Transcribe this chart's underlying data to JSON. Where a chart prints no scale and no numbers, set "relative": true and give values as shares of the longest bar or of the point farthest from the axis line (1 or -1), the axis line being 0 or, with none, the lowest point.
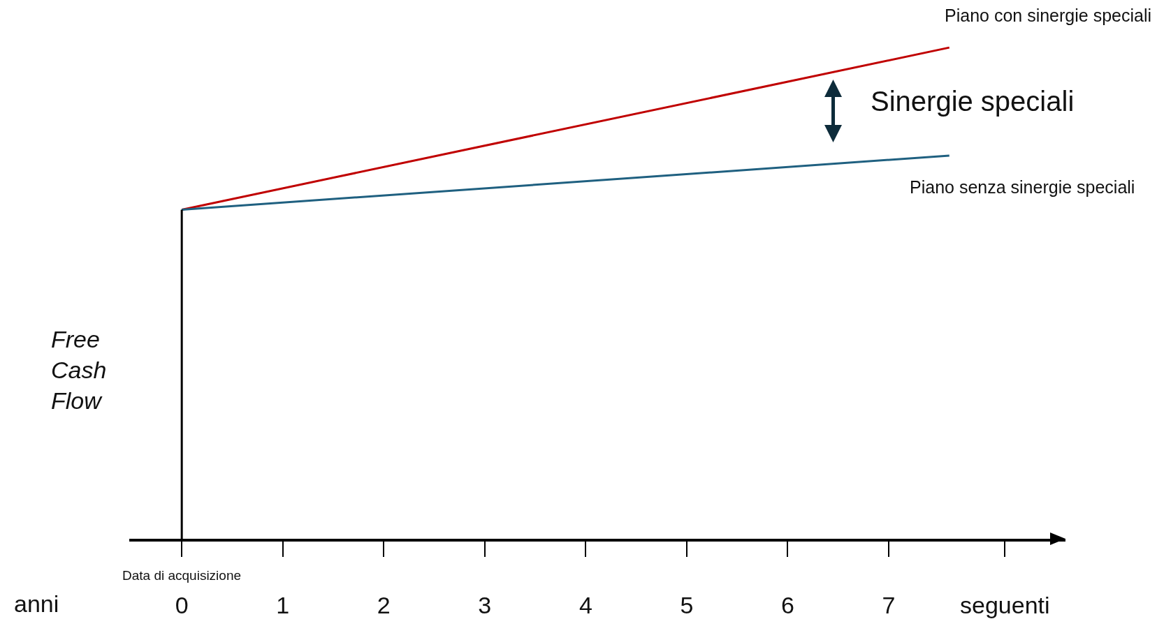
{
  "chart_data": {
    "type": "line",
    "relative": true,
    "ylabel": "Free Cash Flow",
    "xlabel": "anni",
    "marker": "none",
    "grid": false,
    "legend": false,
    "tick_labels": "x",
    "x": [
      0,
      7.6
    ],
    "xlim": [
      -0.52,
      8.75
    ],
    "xticks": [
      0,
      1,
      2,
      3,
      4,
      5,
      6,
      7,
      {
        "value": 8.15,
        "label": "seguenti"
      }
    ],
    "annotations": [
      "Data di acquisizione",
      "Sinergie speciali"
    ],
    "series": [
      {
        "name": "Piano con sinergie speciali",
        "color": "#c00000",
        "values": [
          0.67,
          1
        ]
      },
      {
        "name": "Piano senza sinergie speciali",
        "color": "#1f6080",
        "values": [
          0.67,
          0.78
        ]
      },
      {
        "color": "#000000",
        "x": [
          0,
          0
        ],
        "values": [
          0,
          0.67
        ]
      }
    ]
  }
}
